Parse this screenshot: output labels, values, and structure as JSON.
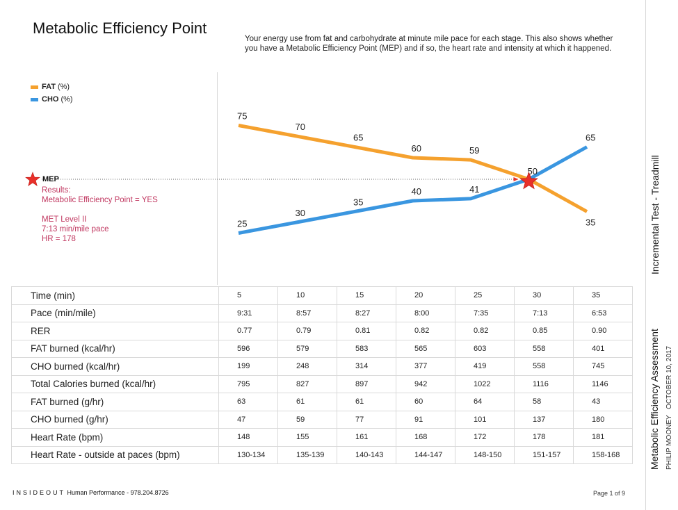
{
  "header": {
    "title": "Metabolic Efficiency Point",
    "description": "Your energy use from fat and carbohydrate at minute mile pace for each stage. This also shows whether you have a Metabolic Efficiency Point (MEP) and if so, the heart rate and intensity at which it happened."
  },
  "legend": {
    "fat_name": "FAT",
    "fat_unit": "(%)",
    "cho_name": "CHO",
    "cho_unit": "(%)"
  },
  "mep": {
    "label": "MEP",
    "results_title": "Results:",
    "results_value": "Metabolic Efficiency Point = YES",
    "level": "MET Level II",
    "pace": "7:13 min/mile pace",
    "hr": "HR = 178"
  },
  "chart_data": {
    "type": "line",
    "x": [
      5,
      10,
      15,
      20,
      25,
      30,
      35
    ],
    "series": [
      {
        "name": "FAT (%)",
        "color": "#f5a12e",
        "values": [
          75,
          70,
          65,
          60,
          59,
          50,
          35
        ],
        "labels": [
          "75",
          "70",
          "65",
          "60",
          "59",
          "50",
          "35"
        ]
      },
      {
        "name": "CHO (%)",
        "color": "#3a96e0",
        "values": [
          25,
          30,
          35,
          40,
          41,
          50,
          65
        ],
        "labels": [
          "25",
          "30",
          "35",
          "40",
          "41",
          "",
          "65"
        ]
      }
    ],
    "ylim": [
      0,
      100
    ],
    "grid": false,
    "legend_position": "top-left",
    "marker": {
      "label": "MEP",
      "x": 30,
      "y": 50,
      "color": "#e8302a"
    }
  },
  "table": {
    "rows": [
      {
        "label": "Time (min)",
        "values": [
          "5",
          "10",
          "15",
          "20",
          "25",
          "30",
          "35"
        ]
      },
      {
        "label": "Pace (min/mile)",
        "values": [
          "9:31",
          "8:57",
          "8:27",
          "8:00",
          "7:35",
          "7:13",
          "6:53"
        ]
      },
      {
        "label": "RER",
        "values": [
          "0.77",
          "0.79",
          "0.81",
          "0.82",
          "0.82",
          "0.85",
          "0.90"
        ]
      },
      {
        "label": "FAT burned (kcal/hr)",
        "values": [
          "596",
          "579",
          "583",
          "565",
          "603",
          "558",
          "401"
        ]
      },
      {
        "label": "CHO burned (kcal/hr)",
        "values": [
          "199",
          "248",
          "314",
          "377",
          "419",
          "558",
          "745"
        ]
      },
      {
        "label": "Total Calories burned (kcal/hr)",
        "values": [
          "795",
          "827",
          "897",
          "942",
          "1022",
          "1116",
          "1146"
        ]
      },
      {
        "label": "FAT burned (g/hr)",
        "values": [
          "63",
          "61",
          "61",
          "60",
          "64",
          "58",
          "43"
        ]
      },
      {
        "label": "CHO burned (g/hr)",
        "values": [
          "47",
          "59",
          "77",
          "91",
          "101",
          "137",
          "180"
        ]
      },
      {
        "label": "Heart Rate (bpm)",
        "values": [
          "148",
          "155",
          "161",
          "168",
          "172",
          "178",
          "181"
        ]
      },
      {
        "label": "Heart Rate - outside at paces (bpm)",
        "values": [
          "130-134",
          "135-139",
          "140-143",
          "144-147",
          "148-150",
          "151-157",
          "158-168"
        ]
      }
    ]
  },
  "sidebar": {
    "test_type": "Incremental Test - Treadmill",
    "report_title": "Metabolic Efficiency Assessment",
    "athlete": "PHILIP MOONEY",
    "date": "OCTOBER 10, 2017"
  },
  "footer": {
    "brand": "INSIDEOUT",
    "company": "Human Performance - 978.204.8726",
    "page": "Page 1 of 9"
  }
}
